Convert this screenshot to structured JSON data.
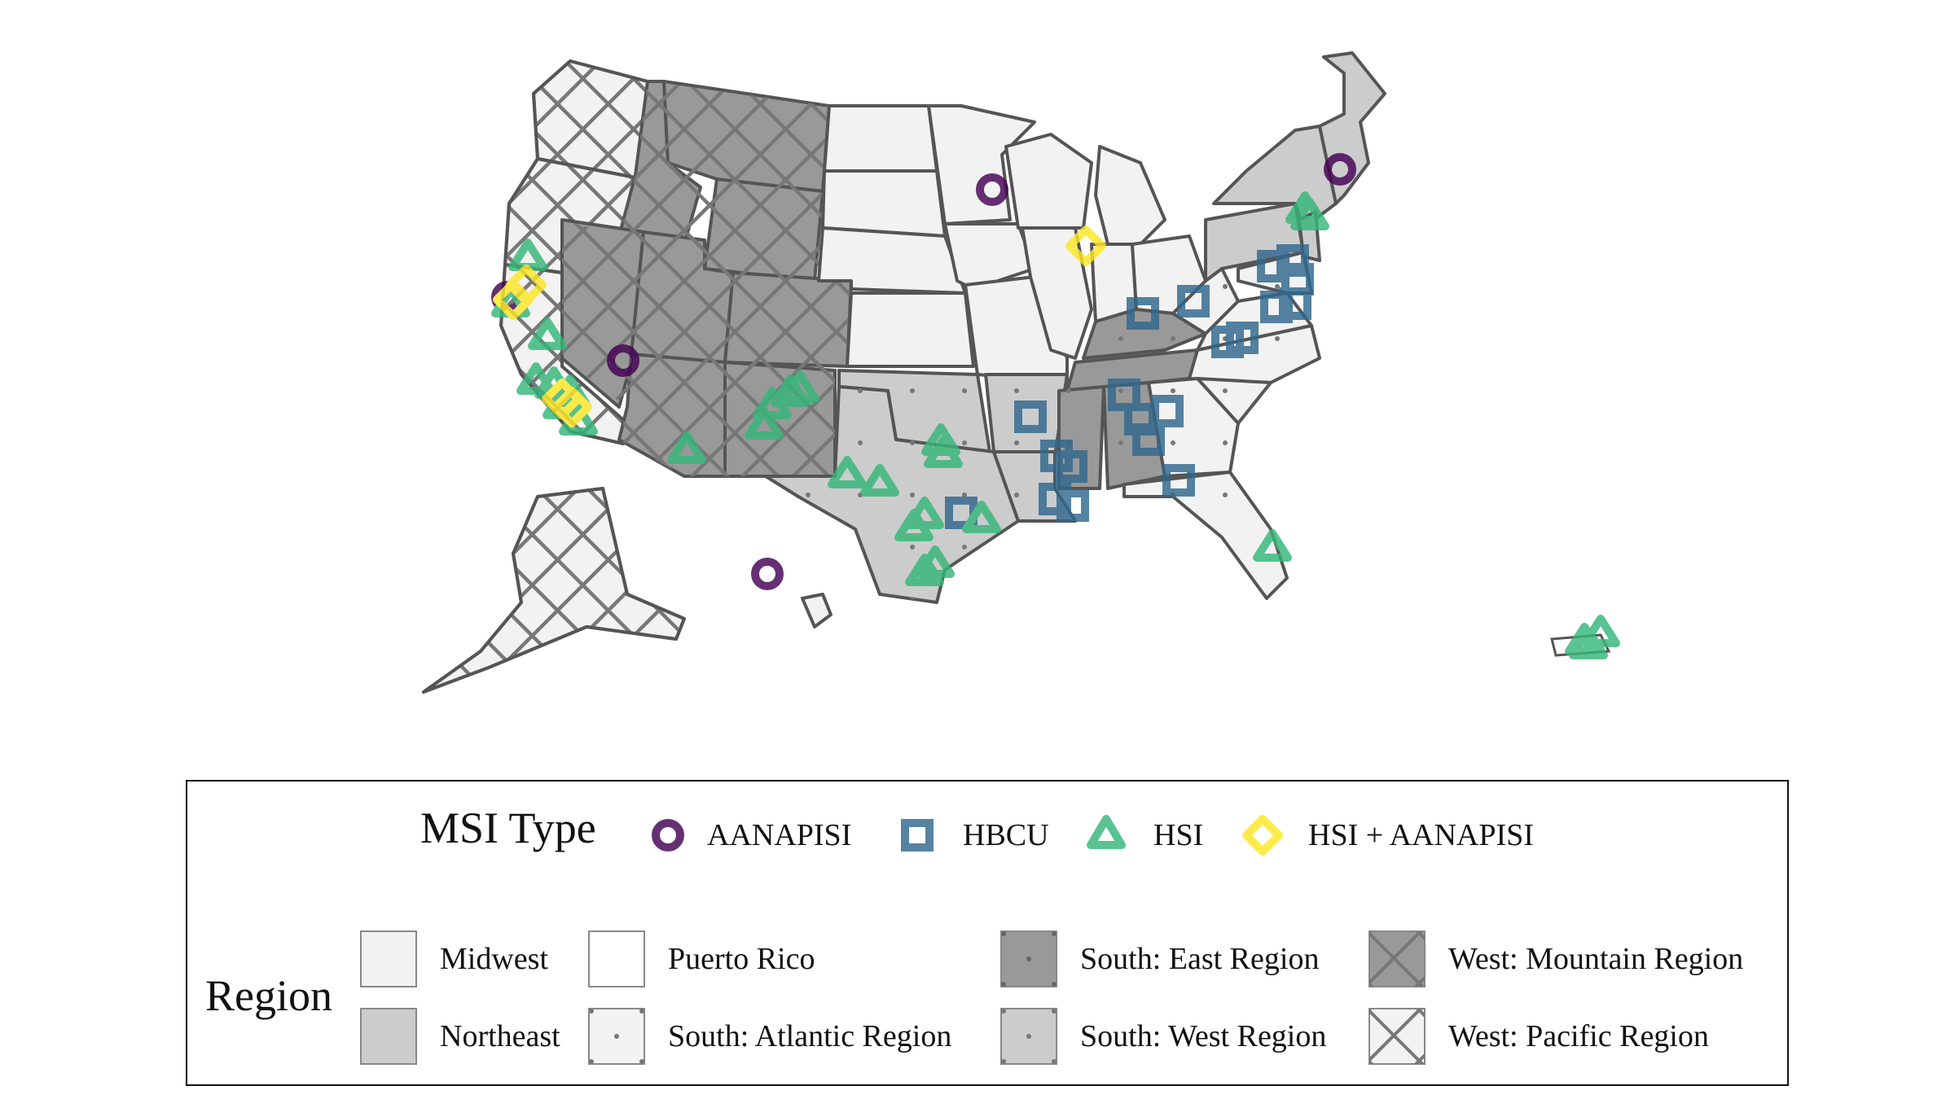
{
  "legend": {
    "msi_title": "MSI Type",
    "msi_types": [
      {
        "label": "AANAPISI",
        "color": "#440154",
        "shape": "circle"
      },
      {
        "label": "HBCU",
        "color": "#31688e",
        "shape": "square"
      },
      {
        "label": "HSI",
        "color": "#35b779",
        "shape": "triangle"
      },
      {
        "label": "HSI + AANAPISI",
        "color": "#fde725",
        "shape": "diamond"
      }
    ],
    "region_title": "Region",
    "regions": [
      {
        "label": "Midwest",
        "fill": "#f2f2f2",
        "pattern": "none"
      },
      {
        "label": "Northeast",
        "fill": "#cccccc",
        "pattern": "none"
      },
      {
        "label": "Puerto Rico",
        "fill": "#ffffff",
        "pattern": "none"
      },
      {
        "label": "South: Atlantic Region",
        "fill": "#f2f2f2",
        "pattern": "dots"
      },
      {
        "label": "South: East Region",
        "fill": "#999999",
        "pattern": "dots"
      },
      {
        "label": "South: West Region",
        "fill": "#cccccc",
        "pattern": "dots"
      },
      {
        "label": "West: Mountain Region",
        "fill": "#999999",
        "pattern": "crosshatch"
      },
      {
        "label": "West: Pacific Region",
        "fill": "#f2f2f2",
        "pattern": "crosshatch"
      }
    ]
  },
  "points": [
    {
      "type": "AANAPISI",
      "place": "Minnesota"
    },
    {
      "type": "AANAPISI",
      "place": "Massachusetts"
    },
    {
      "type": "AANAPISI",
      "place": "Northern California"
    },
    {
      "type": "AANAPISI",
      "place": "Nevada"
    },
    {
      "type": "AANAPISI",
      "place": "Hawaii"
    },
    {
      "type": "HSI + AANAPISI",
      "place": "Illinois"
    },
    {
      "type": "HSI + AANAPISI",
      "place": "Northern California"
    },
    {
      "type": "HSI + AANAPISI",
      "place": "Southern California"
    },
    {
      "type": "HSI",
      "place": "Northern California"
    },
    {
      "type": "HSI",
      "place": "Central California"
    },
    {
      "type": "HSI",
      "place": "Southern California"
    },
    {
      "type": "HSI",
      "place": "Arizona"
    },
    {
      "type": "HSI",
      "place": "New Mexico"
    },
    {
      "type": "HSI",
      "place": "Texas"
    },
    {
      "type": "HSI",
      "place": "Florida"
    },
    {
      "type": "HSI",
      "place": "New York"
    },
    {
      "type": "HSI",
      "place": "Puerto Rico"
    },
    {
      "type": "HBCU",
      "place": "Maryland"
    },
    {
      "type": "HBCU",
      "place": "Virginia"
    },
    {
      "type": "HBCU",
      "place": "North Carolina"
    },
    {
      "type": "HBCU",
      "place": "Tennessee"
    },
    {
      "type": "HBCU",
      "place": "Kentucky"
    },
    {
      "type": "HBCU",
      "place": "Alabama"
    },
    {
      "type": "HBCU",
      "place": "Mississippi"
    },
    {
      "type": "HBCU",
      "place": "Louisiana"
    },
    {
      "type": "HBCU",
      "place": "Arkansas"
    },
    {
      "type": "HBCU",
      "place": "Texas"
    },
    {
      "type": "HBCU",
      "place": "Georgia"
    }
  ]
}
